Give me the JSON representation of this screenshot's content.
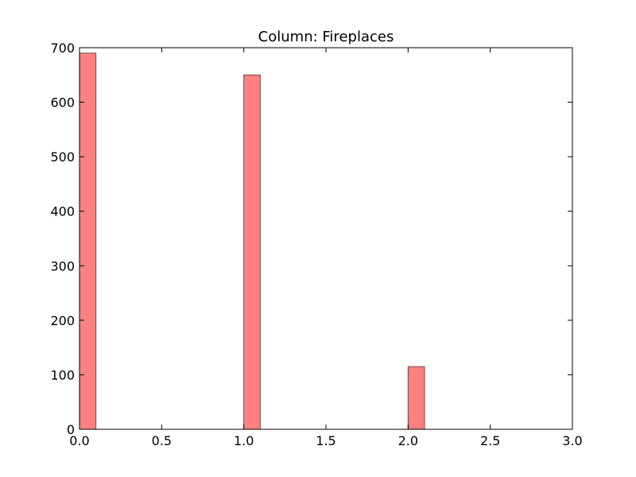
{
  "chart_data": {
    "type": "bar",
    "title": "Column: Fireplaces",
    "xlabel": "",
    "ylabel": "",
    "xlim": [
      0.0,
      3.0
    ],
    "ylim": [
      0,
      700
    ],
    "xticks": [
      "0.0",
      "0.5",
      "1.0",
      "1.5",
      "2.0",
      "2.5",
      "3.0"
    ],
    "yticks": [
      "0",
      "100",
      "200",
      "300",
      "400",
      "500",
      "600",
      "700"
    ],
    "bars": [
      {
        "x_start": 0.0,
        "x_end": 0.1,
        "value": 690
      },
      {
        "x_start": 1.0,
        "x_end": 1.1,
        "value": 650
      },
      {
        "x_start": 2.0,
        "x_end": 2.1,
        "value": 115
      }
    ],
    "bar_color": "#ff8080",
    "bar_edge_color": "#6b4b4b",
    "grid": false
  }
}
